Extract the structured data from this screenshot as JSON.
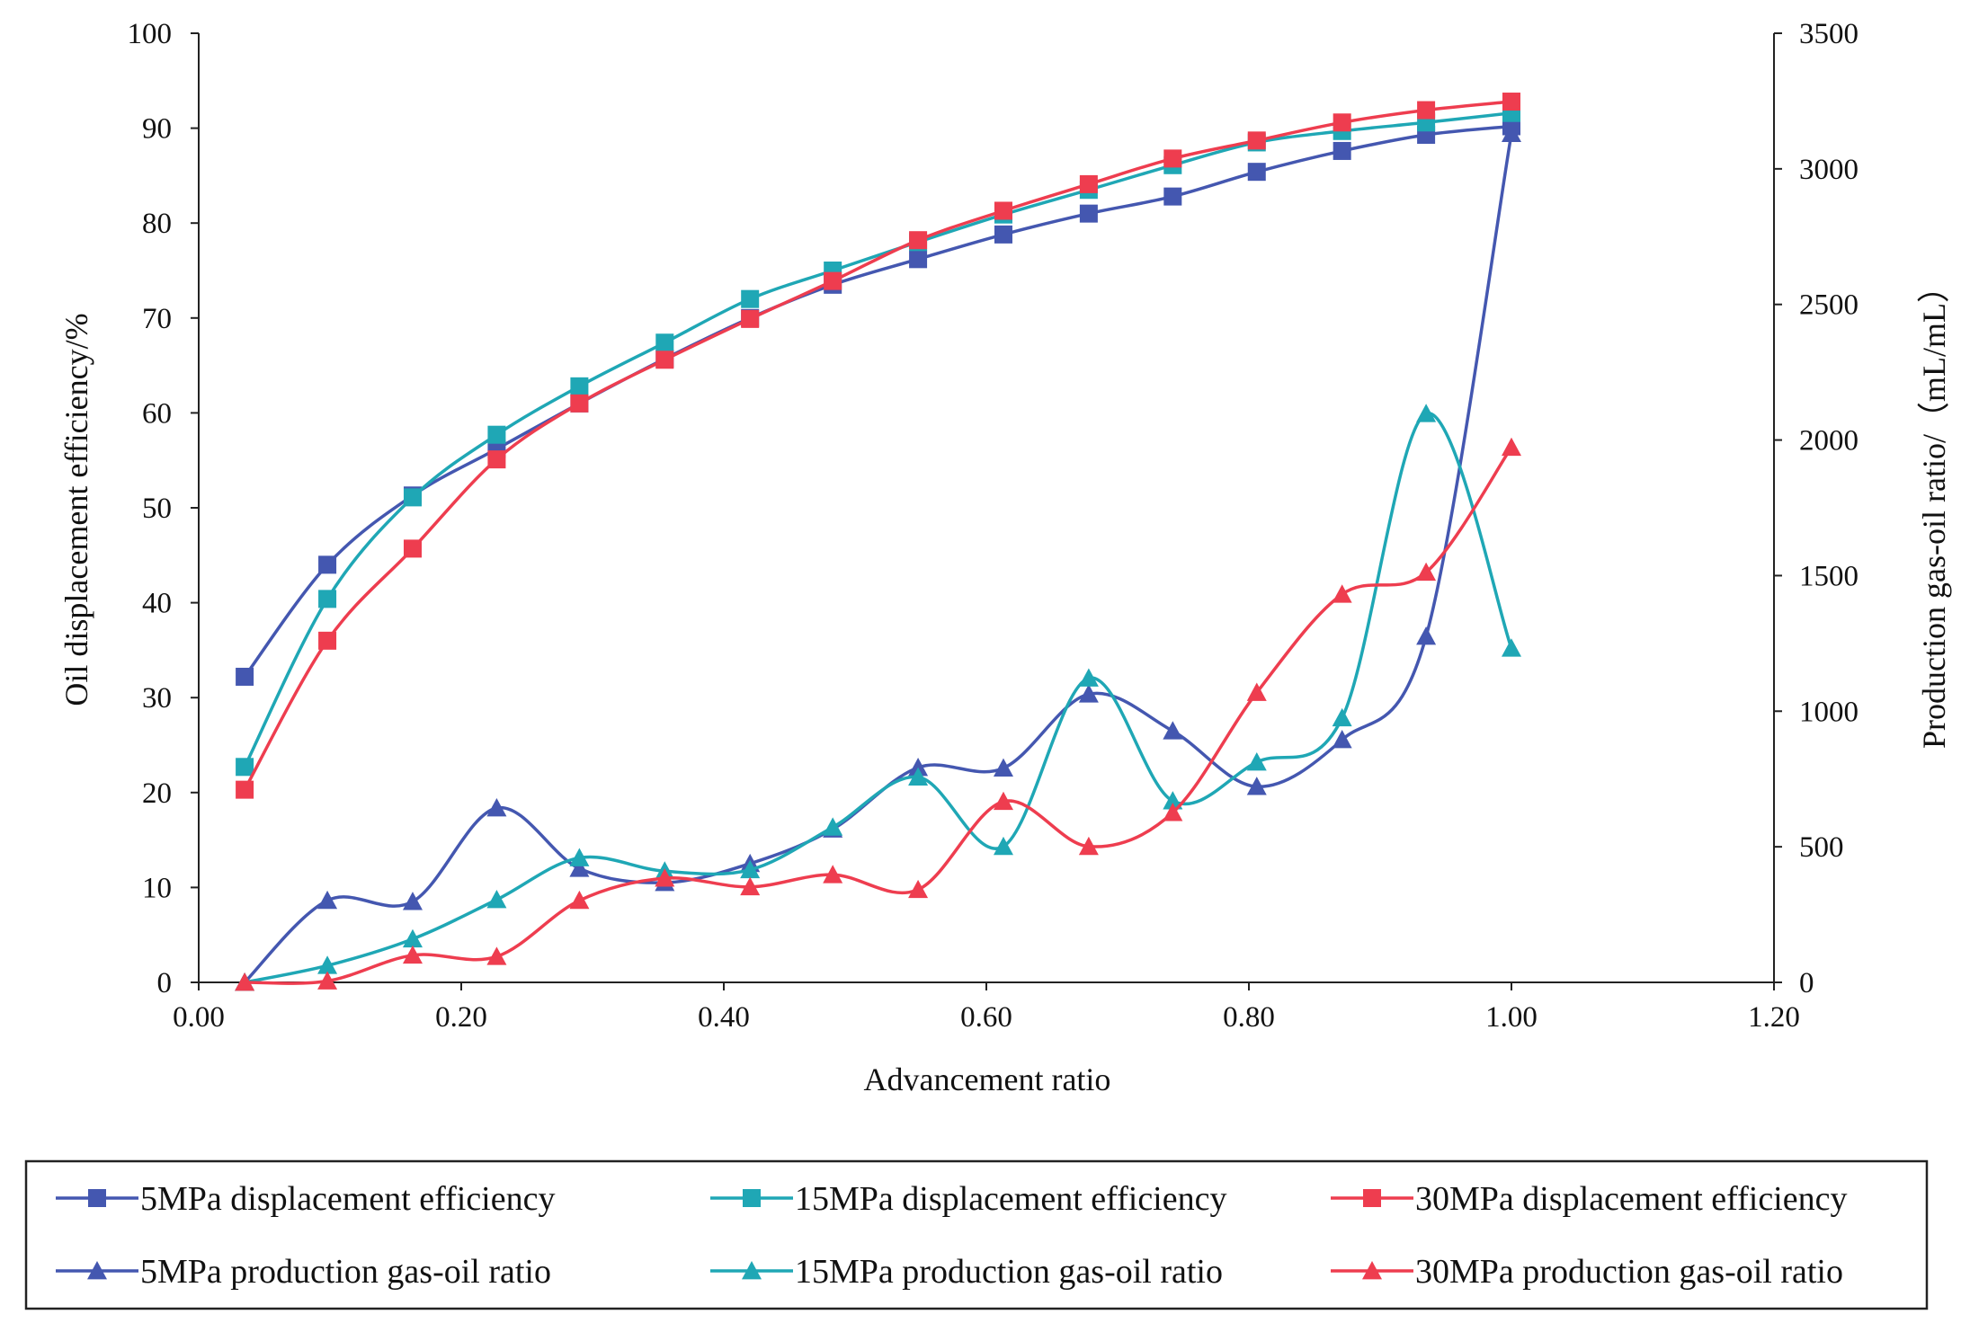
{
  "chart_data": {
    "type": "line",
    "title": "",
    "xlabel": "Advancement ratio",
    "ylabel_left": "Oil displacement efficiency/%",
    "ylabel_right": "Production gas-oil ratio/（mL/mL）",
    "xlim": [
      0,
      1.2
    ],
    "ylim_left": [
      0,
      100
    ],
    "ylim_right": [
      0,
      3500
    ],
    "x_ticks": [
      "0.00",
      "0.20",
      "0.40",
      "0.60",
      "0.80",
      "1.00",
      "1.20"
    ],
    "y_left_ticks": [
      "0",
      "10",
      "20",
      "30",
      "40",
      "50",
      "60",
      "70",
      "80",
      "90",
      "100"
    ],
    "y_right_ticks": [
      "0",
      "500",
      "1000",
      "1500",
      "2000",
      "2500",
      "3000",
      "3500"
    ],
    "legend_position": "bottom",
    "x": [
      0.035,
      0.098,
      0.163,
      0.227,
      0.29,
      0.355,
      0.42,
      0.483,
      0.548,
      0.613,
      0.678,
      0.742,
      0.806,
      0.871,
      0.935,
      1.0
    ],
    "series": [
      {
        "name": "5MPa displacement efficiency",
        "axis": "left",
        "marker": "square",
        "color": "#4457B0",
        "values": [
          32.2,
          44.0,
          51.3,
          56.2,
          61.0,
          65.7,
          70.0,
          73.5,
          76.2,
          78.8,
          81.0,
          82.8,
          85.4,
          87.6,
          89.3,
          90.2
        ]
      },
      {
        "name": "15MPa displacement efficiency",
        "axis": "left",
        "marker": "square",
        "color": "#1FA7B5",
        "values": [
          22.7,
          40.4,
          51.1,
          57.7,
          62.8,
          67.4,
          72.0,
          75.0,
          78.0,
          80.9,
          83.5,
          86.1,
          88.5,
          89.7,
          90.6,
          91.6
        ]
      },
      {
        "name": "30MPa displacement efficiency",
        "axis": "left",
        "marker": "square",
        "color": "#EE3D4F",
        "values": [
          20.3,
          36.0,
          45.7,
          55.1,
          61.0,
          65.6,
          69.9,
          73.9,
          78.2,
          81.3,
          84.1,
          86.8,
          88.7,
          90.6,
          91.9,
          92.8
        ]
      },
      {
        "name": "5MPa production gas-oil ratio",
        "axis": "right",
        "marker": "triangle",
        "color": "#4457B0",
        "values": [
          0,
          302,
          298,
          643,
          420,
          368,
          438,
          565,
          792,
          790,
          1063,
          927,
          722,
          895,
          1276,
          3130
        ]
      },
      {
        "name": "15MPa production gas-oil ratio",
        "axis": "right",
        "marker": "triangle",
        "color": "#1FA7B5",
        "values": [
          0,
          62,
          160,
          305,
          459,
          410,
          415,
          572,
          757,
          501,
          1122,
          669,
          812,
          975,
          2097,
          1232
        ]
      },
      {
        "name": "30MPa production gas-oil ratio",
        "axis": "right",
        "marker": "triangle",
        "color": "#EE3D4F",
        "values": [
          0,
          5,
          100,
          95,
          302,
          384,
          352,
          397,
          342,
          667,
          501,
          626,
          1069,
          1431,
          1512,
          1973
        ]
      }
    ]
  }
}
